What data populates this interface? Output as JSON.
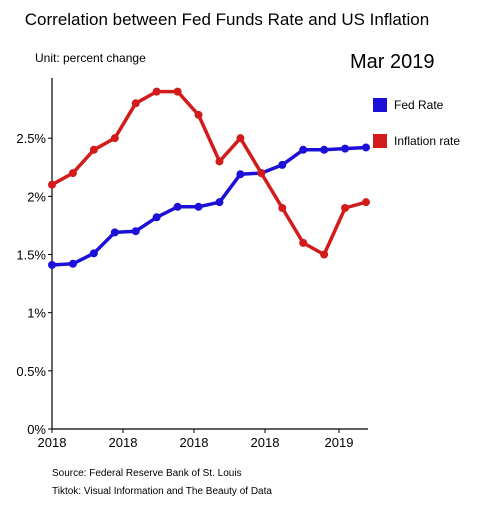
{
  "chart_data": {
    "type": "line",
    "title": "Correlation between Fed Funds Rate and US Inflation",
    "unit_label": "Unit: percent change",
    "date_label": "Mar 2019",
    "x_tick_labels": [
      "2018",
      "2018",
      "2018",
      "2018",
      "2019"
    ],
    "y_tick_labels": [
      "0%",
      "0.5%",
      "1%",
      "1.5%",
      "2%",
      "2.5%"
    ],
    "ylim": [
      0,
      3.0
    ],
    "grid": false,
    "legend_position": "right",
    "series": [
      {
        "name": "Fed Rate",
        "color": "#1c10d8",
        "values": [
          1.41,
          1.42,
          1.51,
          1.69,
          1.7,
          1.82,
          1.91,
          1.91,
          1.95,
          2.19,
          2.2,
          2.27,
          2.4,
          2.4,
          2.41,
          2.42
        ]
      },
      {
        "name": "Inflation rate",
        "color": "#d21c1c",
        "values": [
          2.1,
          2.2,
          2.4,
          2.5,
          2.8,
          2.9,
          2.9,
          2.7,
          2.3,
          2.5,
          2.2,
          1.9,
          1.6,
          1.5,
          1.9,
          1.95
        ]
      }
    ],
    "footnotes": [
      "Source: Federal Reserve Bank of St. Louis",
      "Tiktok: Visual Information and The Beauty of Data"
    ]
  }
}
